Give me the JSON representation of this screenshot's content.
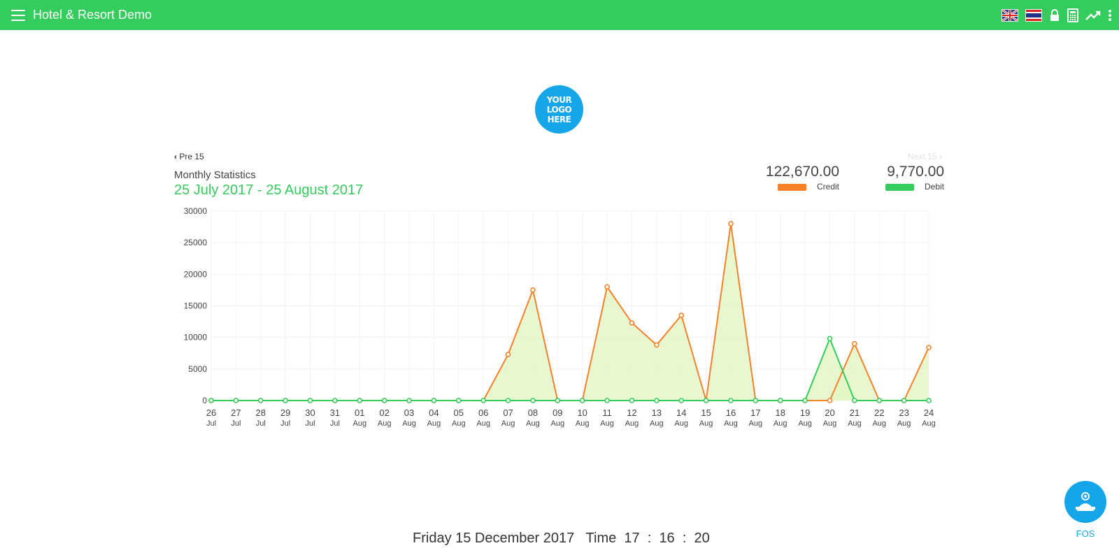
{
  "header": {
    "title": "Hotel & Resort Demo",
    "icons": [
      "menu-icon",
      "uk-flag-icon",
      "thai-flag-icon",
      "lock-icon",
      "calculator-icon",
      "trending-up-icon",
      "more-vert-icon"
    ]
  },
  "logo": {
    "line1": "YOUR",
    "line2": "LOGO",
    "line3": "HERE"
  },
  "nav": {
    "pre_label": "Pre 15",
    "next_label": "Next 15"
  },
  "stats": {
    "title": "Monthly Statistics",
    "range": "25 July 2017 - 25 August 2017",
    "credit_total": "122,670.00",
    "credit_label": "Credit",
    "debit_total": "9,770.00",
    "debit_label": "Debit"
  },
  "colors": {
    "brand": "#34cc5d",
    "credit": "#f5822a",
    "debit": "#34cc5d",
    "fill": "#e2f5c3",
    "accent": "#14a6e8"
  },
  "chart_data": {
    "type": "area",
    "ylim": [
      0,
      30000
    ],
    "yticks": [
      0,
      5000,
      10000,
      15000,
      20000,
      25000,
      30000
    ],
    "grid": true,
    "x": [
      {
        "day": "26",
        "month": "Jul"
      },
      {
        "day": "27",
        "month": "Jul"
      },
      {
        "day": "28",
        "month": "Jul"
      },
      {
        "day": "29",
        "month": "Jul"
      },
      {
        "day": "30",
        "month": "Jul"
      },
      {
        "day": "31",
        "month": "Jul"
      },
      {
        "day": "01",
        "month": "Aug"
      },
      {
        "day": "02",
        "month": "Aug"
      },
      {
        "day": "03",
        "month": "Aug"
      },
      {
        "day": "04",
        "month": "Aug"
      },
      {
        "day": "05",
        "month": "Aug"
      },
      {
        "day": "06",
        "month": "Aug"
      },
      {
        "day": "07",
        "month": "Aug"
      },
      {
        "day": "08",
        "month": "Aug"
      },
      {
        "day": "09",
        "month": "Aug"
      },
      {
        "day": "10",
        "month": "Aug"
      },
      {
        "day": "11",
        "month": "Aug"
      },
      {
        "day": "12",
        "month": "Aug"
      },
      {
        "day": "13",
        "month": "Aug"
      },
      {
        "day": "14",
        "month": "Aug"
      },
      {
        "day": "15",
        "month": "Aug"
      },
      {
        "day": "16",
        "month": "Aug"
      },
      {
        "day": "17",
        "month": "Aug"
      },
      {
        "day": "18",
        "month": "Aug"
      },
      {
        "day": "19",
        "month": "Aug"
      },
      {
        "day": "20",
        "month": "Aug"
      },
      {
        "day": "21",
        "month": "Aug"
      },
      {
        "day": "22",
        "month": "Aug"
      },
      {
        "day": "23",
        "month": "Aug"
      },
      {
        "day": "24",
        "month": "Aug"
      }
    ],
    "series": [
      {
        "name": "Credit",
        "values": [
          0,
          0,
          0,
          0,
          0,
          0,
          0,
          0,
          0,
          0,
          0,
          0,
          7300,
          17500,
          0,
          0,
          18000,
          12300,
          8800,
          13500,
          0,
          28000,
          0,
          0,
          0,
          0,
          9000,
          0,
          0,
          8400
        ]
      },
      {
        "name": "Debit",
        "values": [
          0,
          0,
          0,
          0,
          0,
          0,
          0,
          0,
          0,
          0,
          0,
          0,
          0,
          0,
          0,
          0,
          0,
          0,
          0,
          0,
          0,
          0,
          0,
          0,
          0,
          9800,
          0,
          0,
          0,
          0
        ]
      }
    ]
  },
  "footer": {
    "date": "Friday 15 December 2017",
    "time_label": "Time",
    "hour": "17",
    "minute": "16",
    "second": "20",
    "sep": ":"
  },
  "fos": {
    "label": "FOS"
  }
}
